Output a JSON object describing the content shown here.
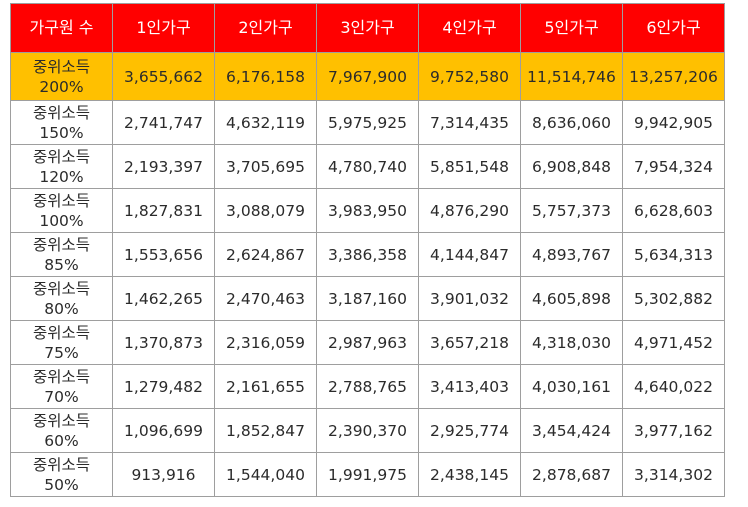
{
  "table": {
    "corner": "가구원 수",
    "headers": [
      "1인가구",
      "2인가구",
      "3인가구",
      "4인가구",
      "5인가구",
      "6인가구"
    ],
    "rows": [
      {
        "label_top": "중위소득",
        "label_bottom": "200%",
        "values": [
          "3,655,662",
          "6,176,158",
          "7,967,900",
          "9,752,580",
          "11,514,746",
          "13,257,206"
        ]
      },
      {
        "label_top": "중위소득",
        "label_bottom": "150%",
        "values": [
          "2,741,747",
          "4,632,119",
          "5,975,925",
          "7,314,435",
          "8,636,060",
          "9,942,905"
        ]
      },
      {
        "label_top": "중위소득",
        "label_bottom": "120%",
        "values": [
          "2,193,397",
          "3,705,695",
          "4,780,740",
          "5,851,548",
          "6,908,848",
          "7,954,324"
        ]
      },
      {
        "label_top": "중위소득",
        "label_bottom": "100%",
        "values": [
          "1,827,831",
          "3,088,079",
          "3,983,950",
          "4,876,290",
          "5,757,373",
          "6,628,603"
        ]
      },
      {
        "label_top": "중위소득",
        "label_bottom": "85%",
        "values": [
          "1,553,656",
          "2,624,867",
          "3,386,358",
          "4,144,847",
          "4,893,767",
          "5,634,313"
        ]
      },
      {
        "label_top": "중위소득",
        "label_bottom": "80%",
        "values": [
          "1,462,265",
          "2,470,463",
          "3,187,160",
          "3,901,032",
          "4,605,898",
          "5,302,882"
        ]
      },
      {
        "label_top": "중위소득",
        "label_bottom": "75%",
        "values": [
          "1,370,873",
          "2,316,059",
          "2,987,963",
          "3,657,218",
          "4,318,030",
          "4,971,452"
        ]
      },
      {
        "label_top": "중위소득",
        "label_bottom": "70%",
        "values": [
          "1,279,482",
          "2,161,655",
          "2,788,765",
          "3,413,403",
          "4,030,161",
          "4,640,022"
        ]
      },
      {
        "label_top": "중위소득",
        "label_bottom": "60%",
        "values": [
          "1,096,699",
          "1,852,847",
          "2,390,370",
          "2,925,774",
          "3,454,424",
          "3,977,162"
        ]
      },
      {
        "label_top": "중위소득",
        "label_bottom": "50%",
        "values": [
          "913,916",
          "1,544,040",
          "1,991,975",
          "2,438,145",
          "2,878,687",
          "3,314,302"
        ]
      }
    ]
  },
  "colors": {
    "header_bg": "#ff0000",
    "highlight_bg": "#ffc000",
    "border": "#9e9e9e"
  }
}
